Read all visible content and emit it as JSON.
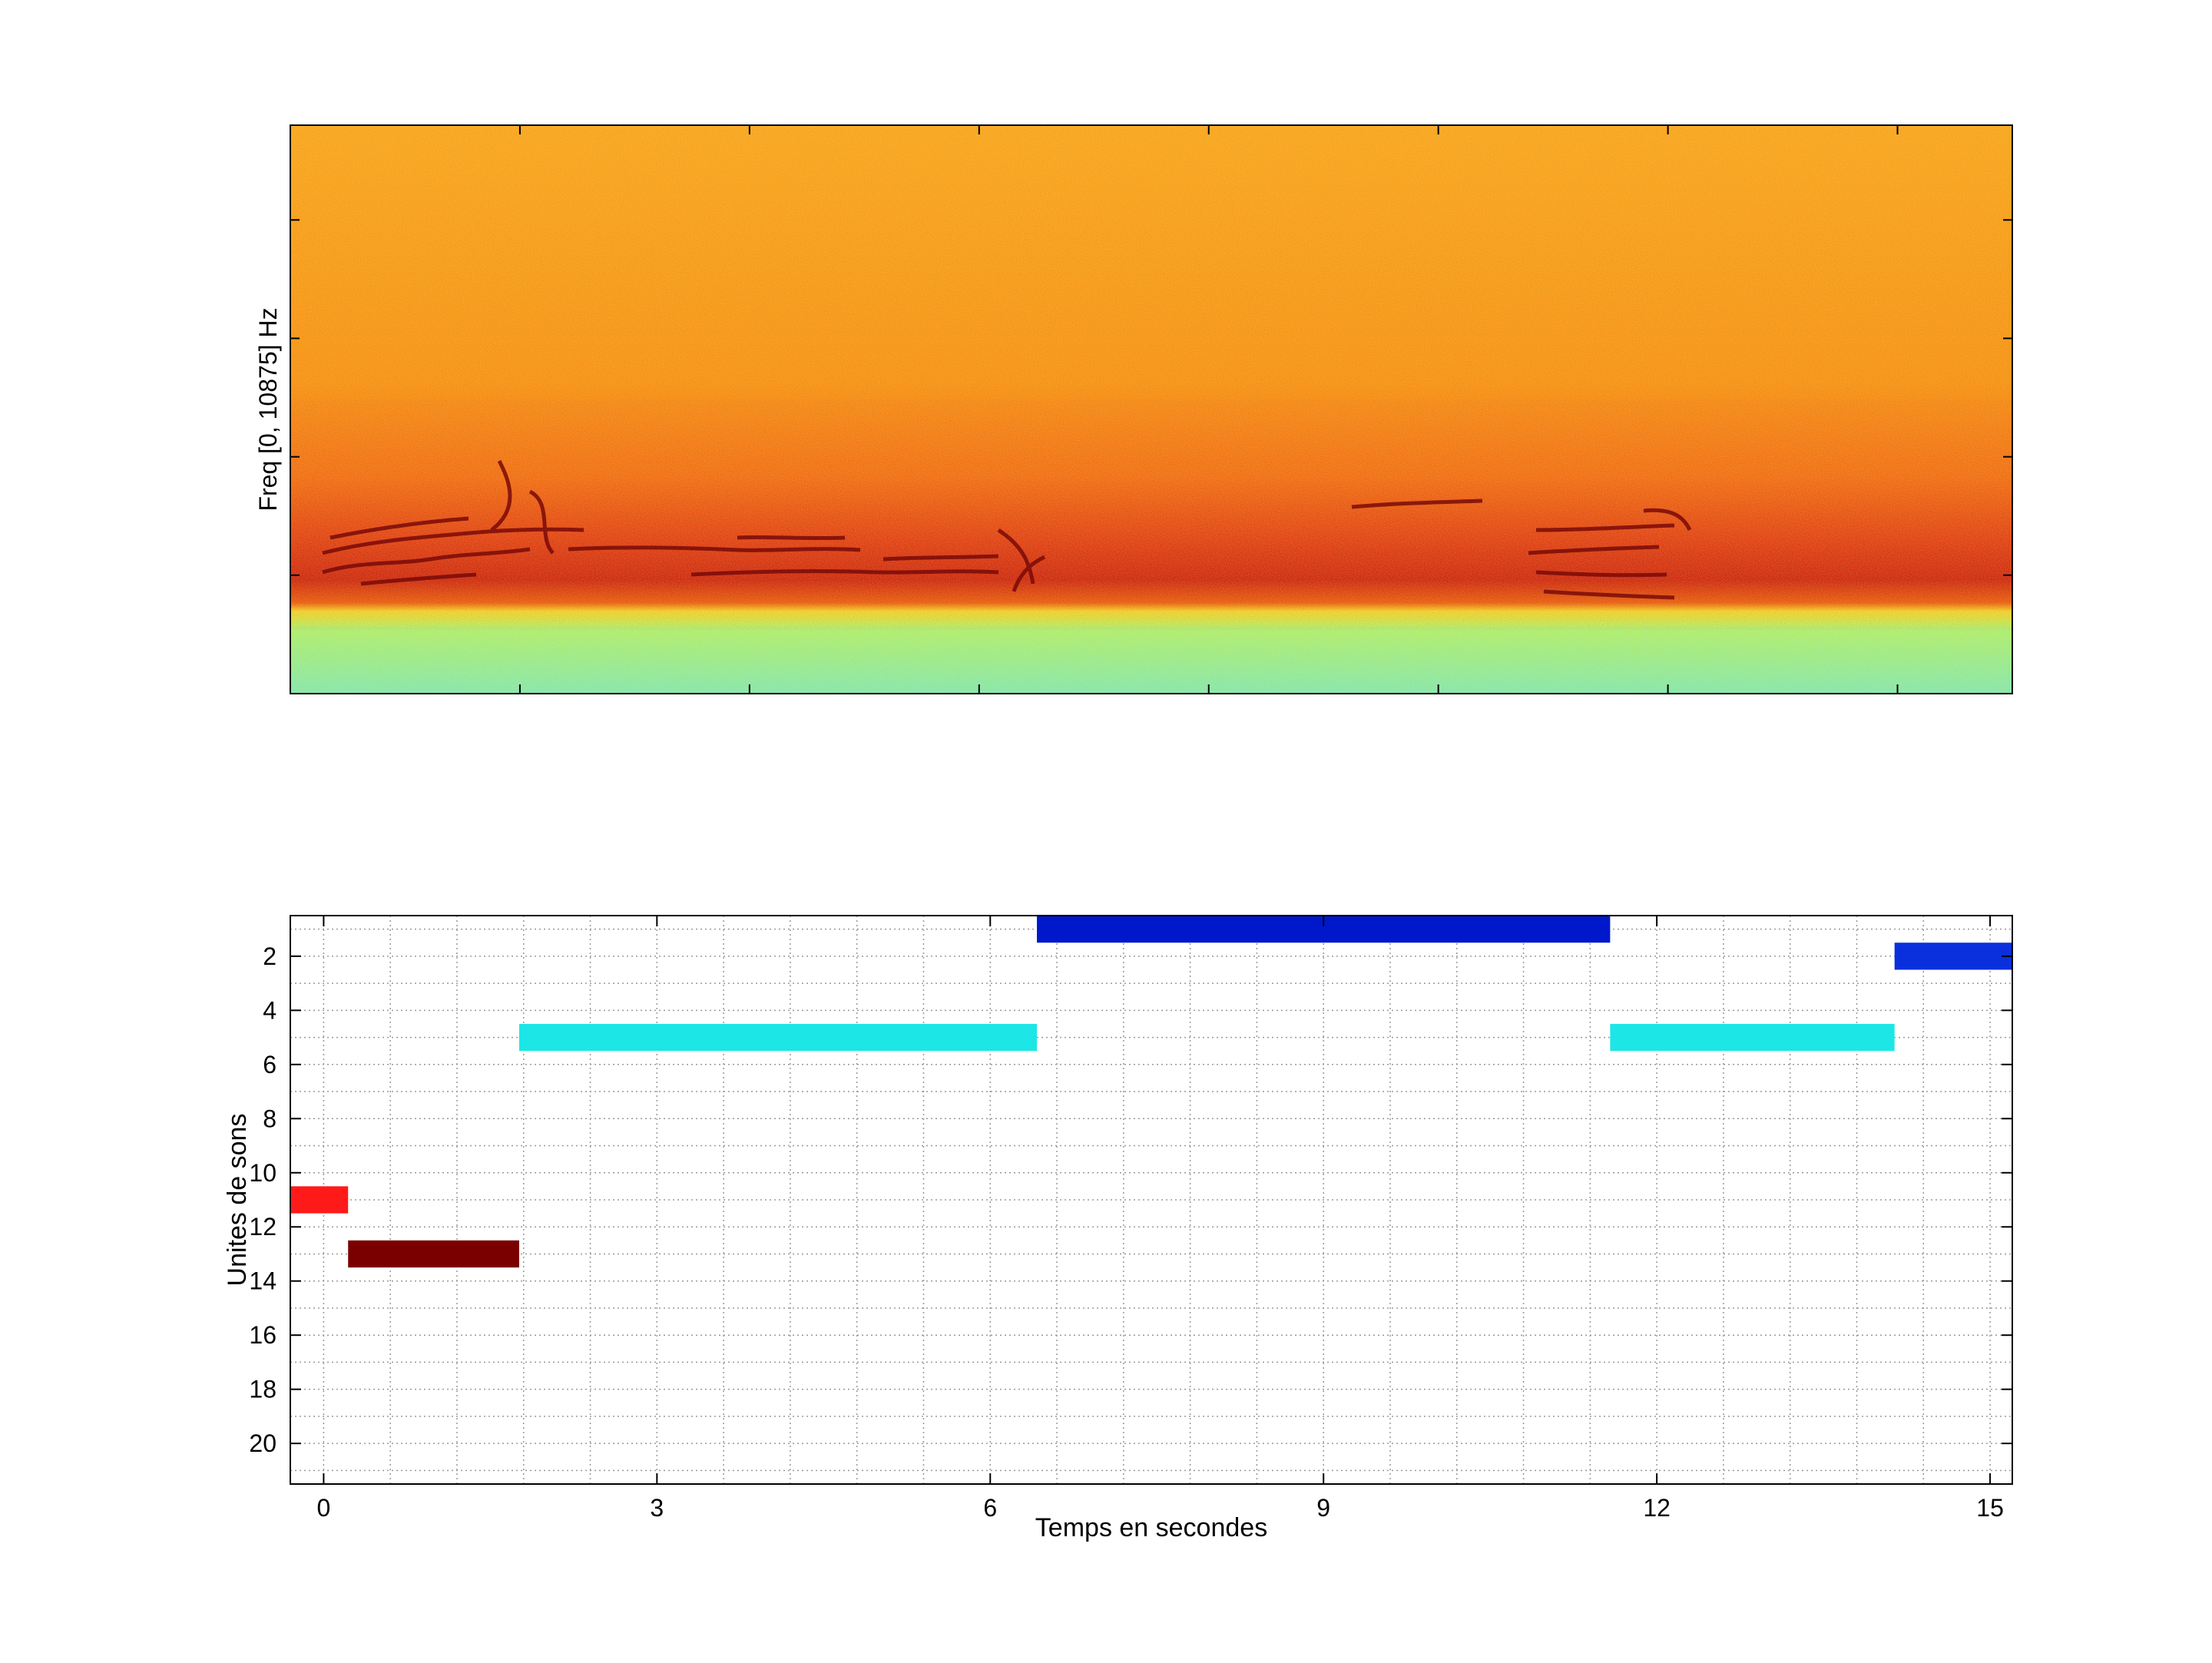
{
  "chart_data": [
    {
      "type": "heatmap",
      "title": "",
      "xlabel": "",
      "ylabel": "Freq [0, 10875] Hz",
      "ylim": [
        0,
        10875
      ],
      "y_tick_labels": [],
      "x_tick_labels": [],
      "colormap": "jet",
      "colors": {
        "noise_floor": "#7fe6a0",
        "mid": "#f59a16",
        "harmonics": "#c81a10"
      }
    },
    {
      "type": "bar",
      "orientation": "horizontal",
      "title": "",
      "xlabel": "Temps en secondes",
      "ylabel": "Unites de sons",
      "xlim": [
        -0.3,
        15.2
      ],
      "ylim": [
        21.5,
        0.5
      ],
      "x_ticks": [
        0,
        3,
        6,
        9,
        12,
        15
      ],
      "y_ticks": [
        2,
        4,
        6,
        8,
        10,
        12,
        14,
        16,
        18,
        20
      ],
      "grid": true,
      "segments": [
        {
          "unit": 11,
          "start": -0.3,
          "end": 0.22,
          "color": "#ff1a1a"
        },
        {
          "unit": 13,
          "start": 0.22,
          "end": 1.76,
          "color": "#7a0000"
        },
        {
          "unit": 5,
          "start": 1.76,
          "end": 6.42,
          "color": "#1de6e6"
        },
        {
          "unit": 1,
          "start": 6.42,
          "end": 11.58,
          "color": "#0018cc"
        },
        {
          "unit": 5,
          "start": 11.58,
          "end": 14.14,
          "color": "#1de6e6"
        },
        {
          "unit": 2,
          "start": 14.14,
          "end": 15.2,
          "color": "#0a30dd"
        }
      ]
    }
  ]
}
